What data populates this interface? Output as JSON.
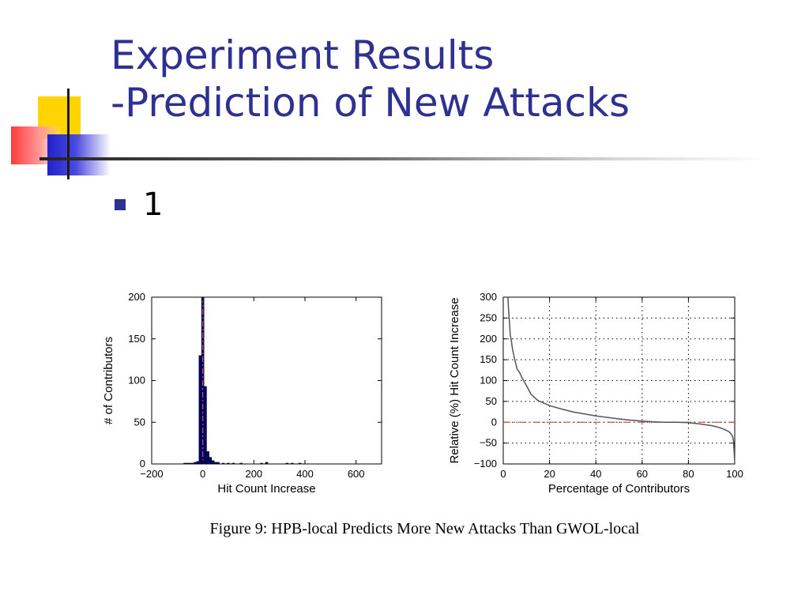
{
  "slide": {
    "title_line1": "Experiment Results",
    "title_line2": "-Prediction of New Attacks",
    "bullet": "1",
    "caption": "Figure 9: HPB-local Predicts More New Attacks Than GWOL-local"
  },
  "colors": {
    "title": "#2e3192",
    "bar": "#00006e",
    "reference_line": "#d9534f",
    "curve": "#555555"
  },
  "chart_data": [
    {
      "type": "bar",
      "title": "",
      "xlabel": "Hit Count Increase",
      "ylabel": "# of Contributors",
      "xlim": [
        -200,
        700
      ],
      "ylim": [
        0,
        200
      ],
      "xticks": [
        -200,
        0,
        200,
        400,
        600
      ],
      "xtick_labels": [
        "−200",
        "0",
        "200",
        "400",
        "600"
      ],
      "yticks": [
        0,
        50,
        100,
        150,
        200
      ],
      "ytick_labels": [
        "0",
        "50",
        "100",
        "150",
        "200"
      ],
      "grid": false,
      "bin_width": 10,
      "bins": [
        {
          "x": -70,
          "y": 1
        },
        {
          "x": -60,
          "y": 1
        },
        {
          "x": -50,
          "y": 1
        },
        {
          "x": -40,
          "y": 1
        },
        {
          "x": -30,
          "y": 2
        },
        {
          "x": -20,
          "y": 3
        },
        {
          "x": -10,
          "y": 130
        },
        {
          "x": 0,
          "y": 200
        },
        {
          "x": 10,
          "y": 93
        },
        {
          "x": 20,
          "y": 15
        },
        {
          "x": 30,
          "y": 8
        },
        {
          "x": 40,
          "y": 4
        },
        {
          "x": 50,
          "y": 2
        },
        {
          "x": 60,
          "y": 2
        },
        {
          "x": 80,
          "y": 1
        },
        {
          "x": 100,
          "y": 1
        },
        {
          "x": 120,
          "y": 1
        },
        {
          "x": 150,
          "y": 1
        },
        {
          "x": 230,
          "y": 1
        },
        {
          "x": 250,
          "y": 2
        },
        {
          "x": 330,
          "y": 1
        },
        {
          "x": 350,
          "y": 1
        },
        {
          "x": 380,
          "y": 1
        }
      ],
      "reference_line": {
        "x": 0,
        "style": "dash-dot"
      }
    },
    {
      "type": "line",
      "title": "",
      "xlabel": "Percentage of Contributors",
      "ylabel": "Relative (%) Hit Count Increase",
      "xlim": [
        0,
        100
      ],
      "ylim": [
        -100,
        300
      ],
      "xticks": [
        0,
        20,
        40,
        60,
        80,
        100
      ],
      "xtick_labels": [
        "0",
        "20",
        "40",
        "60",
        "80",
        "100"
      ],
      "yticks": [
        -100,
        -50,
        0,
        50,
        100,
        150,
        200,
        250,
        300
      ],
      "ytick_labels": [
        "−100",
        "−50",
        "0",
        "50",
        "100",
        "150",
        "200",
        "250",
        "300"
      ],
      "grid": true,
      "reference_line": {
        "y": 0,
        "style": "dash-dot"
      },
      "x": [
        2,
        2.3,
        2.7,
        3,
        3.5,
        4,
        5,
        6,
        7,
        8,
        9,
        10,
        12,
        15,
        20,
        25,
        30,
        40,
        50,
        55,
        60,
        65,
        70,
        75,
        80,
        85,
        90,
        93,
        95,
        97,
        98,
        99,
        99.5,
        100
      ],
      "y": [
        300,
        270,
        240,
        210,
        195,
        175,
        150,
        127,
        120,
        108,
        98,
        88,
        67,
        52,
        40,
        32,
        25,
        15,
        8,
        5,
        3,
        1,
        0,
        0,
        -1,
        -4,
        -8,
        -12,
        -16,
        -21,
        -25,
        -33,
        -45,
        -100
      ]
    }
  ]
}
